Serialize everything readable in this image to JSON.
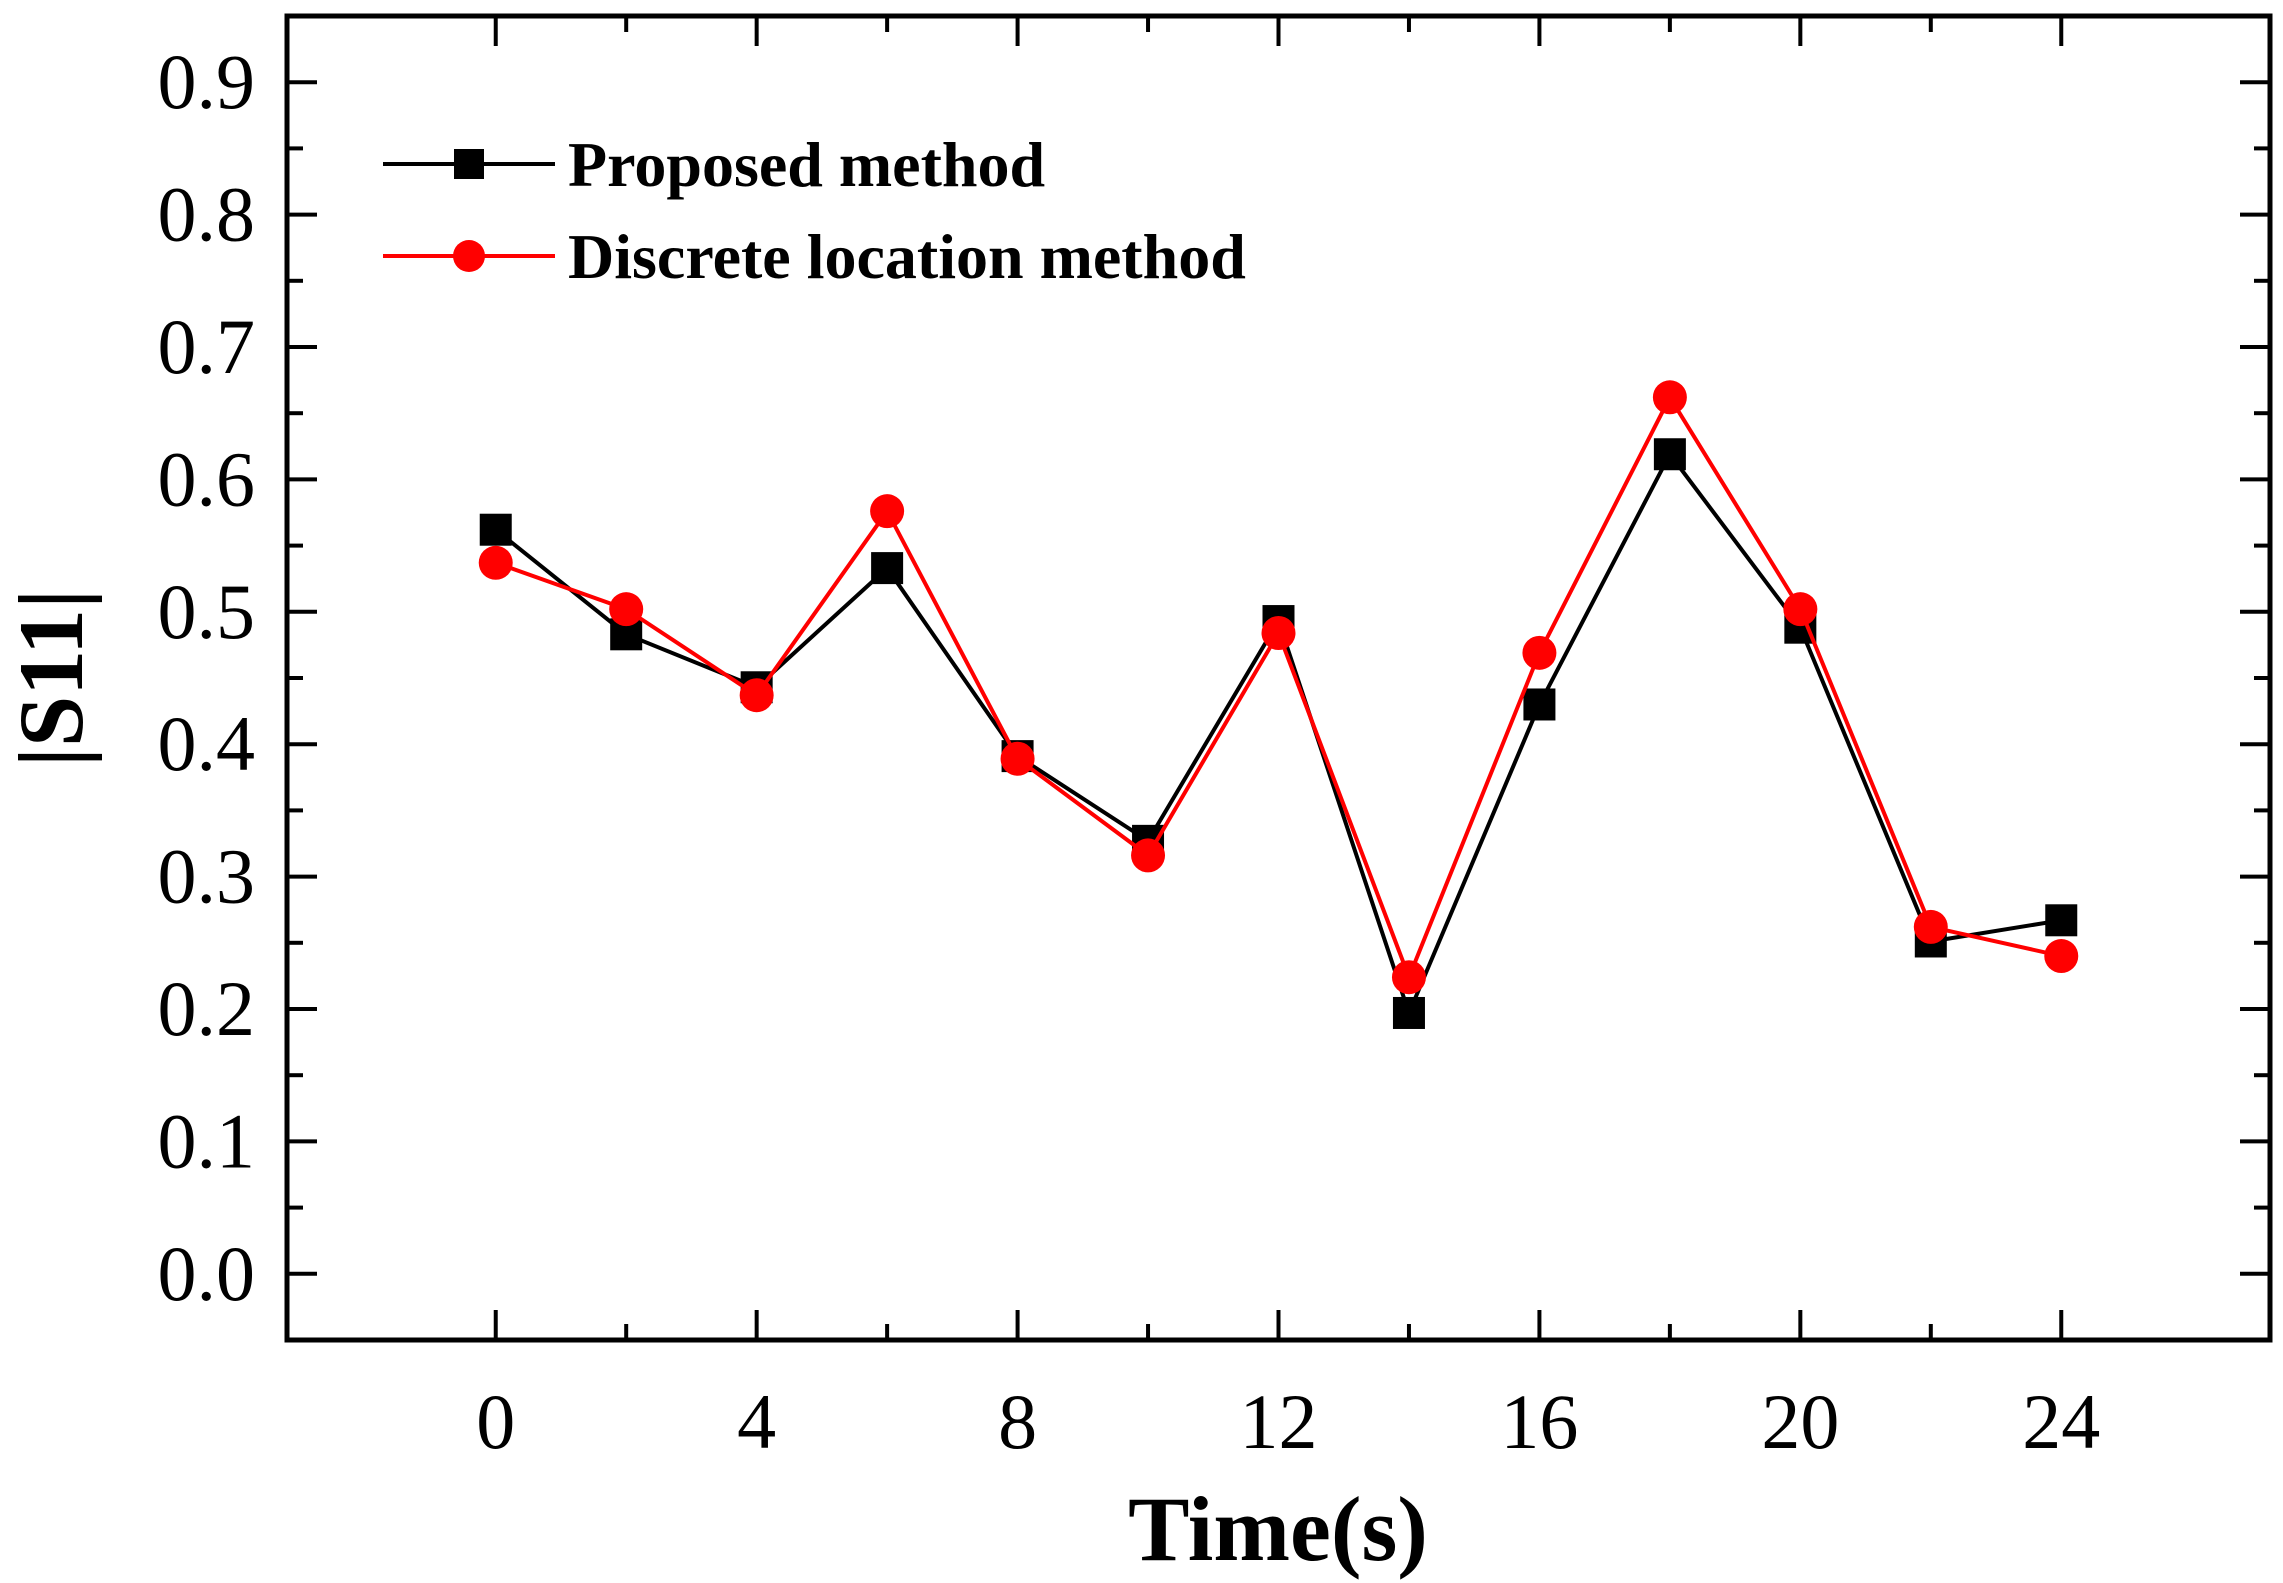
{
  "chart_data": {
    "type": "line",
    "title": "",
    "xlabel": "Time(s)",
    "ylabel": "|S11|",
    "xlim": [
      -3.2,
      27.2
    ],
    "ylim": [
      -0.05,
      0.95
    ],
    "xticks": [
      0,
      4,
      8,
      12,
      16,
      20,
      24
    ],
    "xtick_labels": [
      "0",
      "4",
      "8",
      "12",
      "16",
      "20",
      "24"
    ],
    "xminor": [
      2,
      6,
      10,
      14,
      18,
      22
    ],
    "yticks": [
      0.0,
      0.1,
      0.2,
      0.3,
      0.4,
      0.5,
      0.6,
      0.7,
      0.8,
      0.9
    ],
    "ytick_labels": [
      "0.0",
      "0.1",
      "0.2",
      "0.3",
      "0.4",
      "0.5",
      "0.6",
      "0.7",
      "0.8",
      "0.9"
    ],
    "x": [
      0,
      2,
      4,
      6,
      8,
      10,
      12,
      14,
      16,
      18,
      20,
      22,
      24
    ],
    "grid": false,
    "legend_position": "top-left",
    "series": [
      {
        "name": "Proposed method",
        "color": "#000000",
        "marker": "square",
        "values": [
          0.562,
          0.483,
          0.443,
          0.533,
          0.391,
          0.327,
          0.493,
          0.197,
          0.43,
          0.619,
          0.488,
          0.251,
          0.267
        ]
      },
      {
        "name": "Discrete location method",
        "color": "#ff0000",
        "marker": "circle",
        "values": [
          0.537,
          0.502,
          0.437,
          0.576,
          0.389,
          0.316,
          0.484,
          0.224,
          0.469,
          0.662,
          0.502,
          0.262,
          0.24
        ]
      }
    ]
  }
}
